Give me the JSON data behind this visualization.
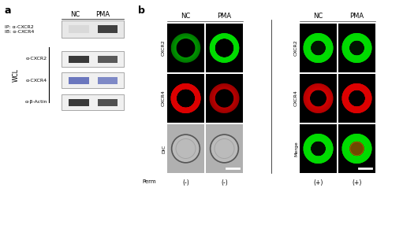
{
  "panel_a_label": "a",
  "panel_b_label": "b",
  "ip_label": "IP: α-CXCR2\nIB: α-CXCR4",
  "wcl_label": "WCL",
  "wcl_rows": [
    "α-CXCR2",
    "α-CXCR4",
    "α-β-Actin"
  ],
  "col_labels_nc_pma": [
    "NC",
    "PMA"
  ],
  "left_grid_row_labels": [
    "CXCR2",
    "CXCR4",
    "DIC"
  ],
  "right_grid_row_labels": [
    "CXCR2",
    "CXCR4",
    "Merge"
  ],
  "perm_labels": [
    "(-)",
    "(-)"
  ],
  "perm_right_labels": [
    "(+)",
    "(+)"
  ],
  "perm_label_text": "Perm",
  "bg_color": "#ffffff",
  "band_dark": "#1a1a1a",
  "band_medium": "#555555",
  "band_light_blue": "#8888aa",
  "grid_bg": "#000000",
  "green_color": "#00cc00",
  "red_color": "#cc0000",
  "green_dim": "#003300",
  "red_dim": "#330000"
}
